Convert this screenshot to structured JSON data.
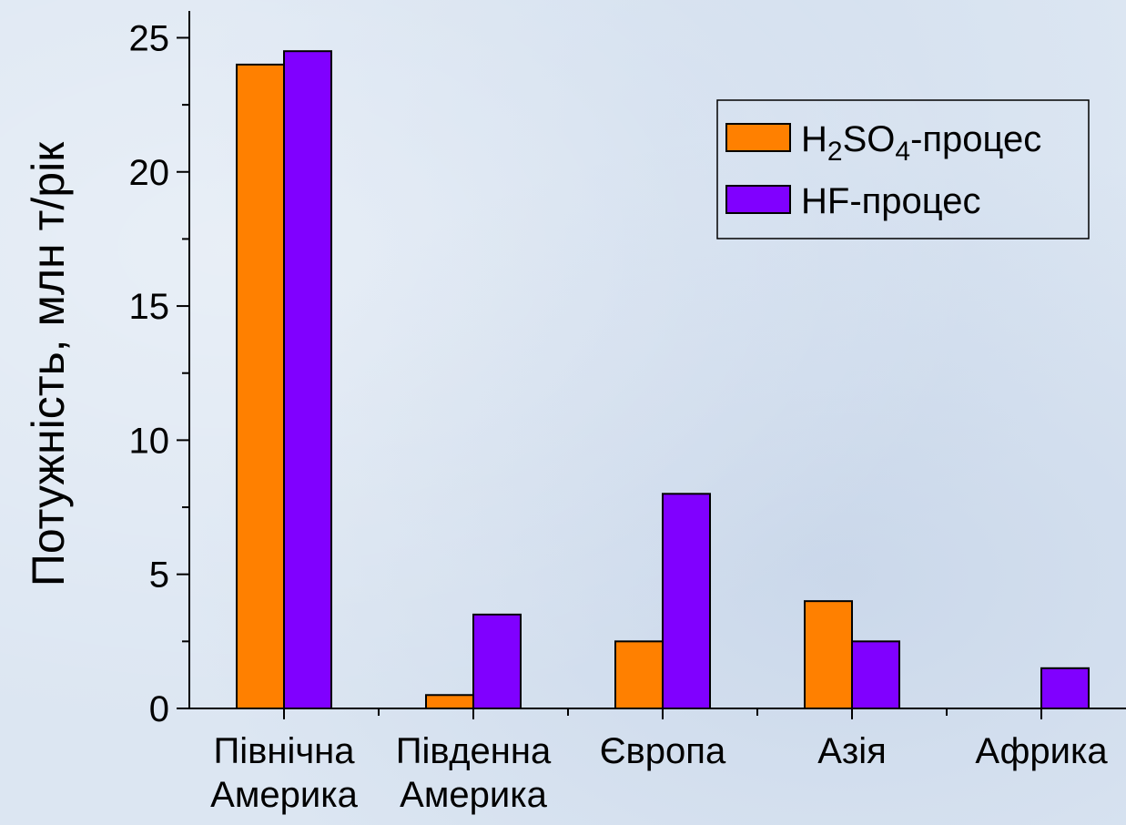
{
  "chart_data": {
    "type": "bar",
    "title": "",
    "ylabel": "Потужність, млн т/рік",
    "xlabel": "",
    "ylim": [
      0,
      26
    ],
    "yticks": [
      0,
      5,
      10,
      15,
      20,
      25
    ],
    "categories": [
      [
        "Північна",
        "Америка"
      ],
      [
        "Південна",
        "Америка"
      ],
      [
        "Європа"
      ],
      [
        "Азія"
      ],
      [
        "Африка"
      ]
    ],
    "series": [
      {
        "name": "H2SO4-процес",
        "legend_label": {
          "parts": [
            "H",
            "2",
            "SO",
            "4",
            "-процес"
          ]
        },
        "color": "#ff8000",
        "values": [
          24,
          0.5,
          2.5,
          4,
          0
        ]
      },
      {
        "name": "HF-процес",
        "legend_label": {
          "parts": [
            "HF-процес"
          ]
        },
        "color": "#8000ff",
        "values": [
          24.5,
          3.5,
          8,
          2.5,
          1.5
        ]
      }
    ],
    "legend_position": "top-right",
    "grid": false
  }
}
